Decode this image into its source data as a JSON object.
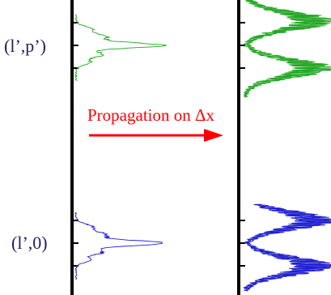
{
  "labels": {
    "mode_upper": "(l’,p’)",
    "mode_lower": "(l’,0)",
    "propagation": "Propagation on Δx"
  },
  "colors": {
    "upper_mode": "#22a822",
    "lower_mode": "#1f1fd0",
    "label_text": "#202060",
    "arrow": "#ff0000",
    "axis": "#000000"
  }
}
